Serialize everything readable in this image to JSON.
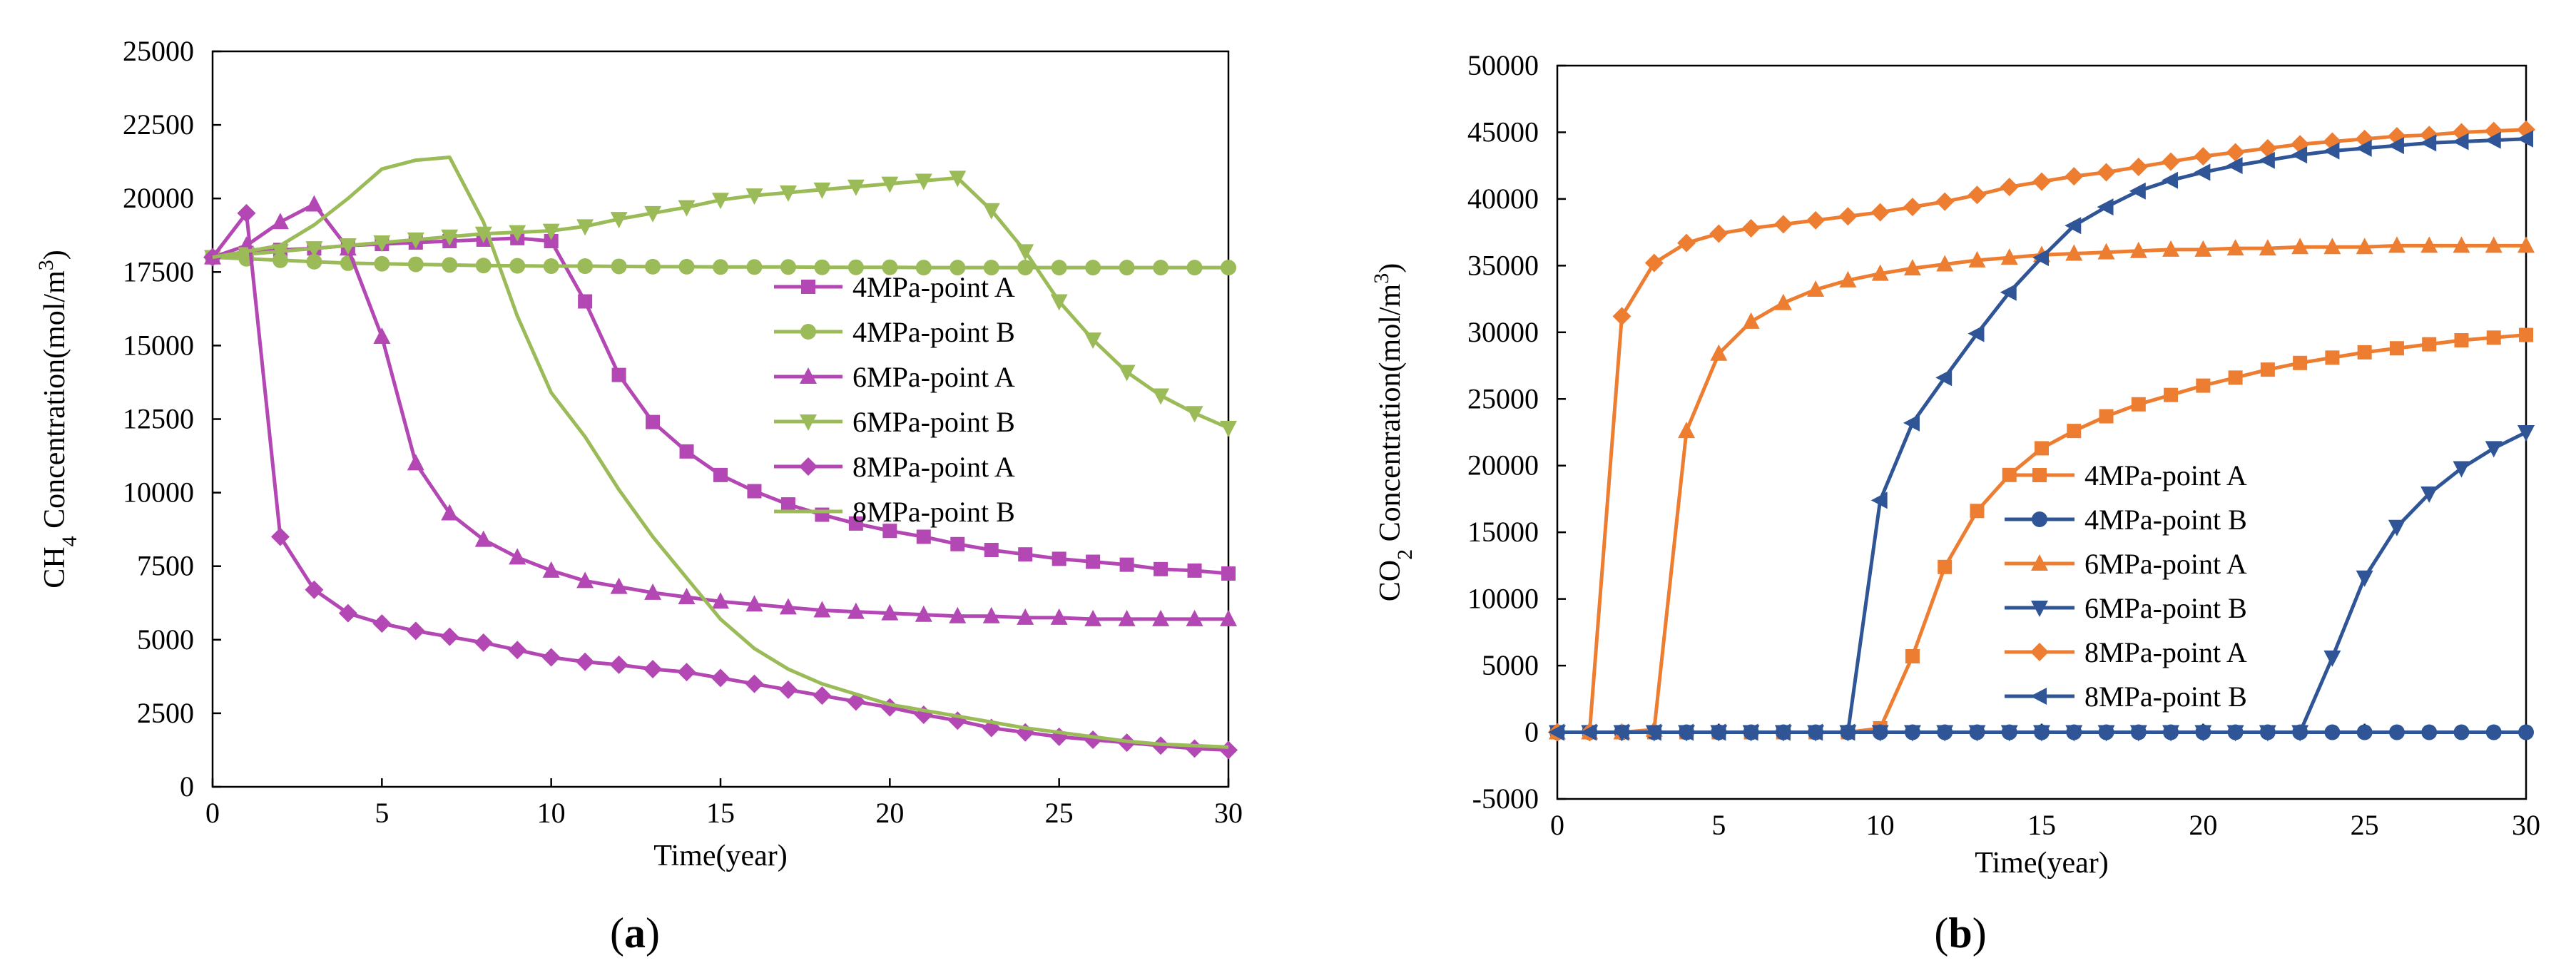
{
  "colors": {
    "magenta": "#b347b3",
    "olive": "#9bbb59",
    "orange": "#ed7d31",
    "navy": "#2f5597",
    "axis": "#000000"
  },
  "chart_data": [
    {
      "id": "a",
      "type": "line",
      "panel_label": "a",
      "title": "",
      "xlabel": "Time(year)",
      "ylabel": "CH4 Concentration(mol/m3)",
      "ylabel_parts": {
        "pre": "CH",
        "sub": "4",
        "mid": " Concentration(mol/m",
        "sup": "3",
        "post": ")"
      },
      "xlim": [
        0,
        30
      ],
      "ylim": [
        0,
        25000
      ],
      "xticks": [
        0,
        5,
        10,
        15,
        20,
        25,
        30
      ],
      "yticks": [
        0,
        2500,
        5000,
        7500,
        10000,
        12500,
        15000,
        17500,
        20000,
        22500,
        25000
      ],
      "grid": false,
      "legend_position": "center-right",
      "series": [
        {
          "name": "4MPa-point A",
          "color_key": "magenta",
          "marker": "square",
          "values": [
            18000,
            18150,
            18250,
            18300,
            18400,
            18450,
            18500,
            18550,
            18600,
            18650,
            18550,
            16500,
            14000,
            12400,
            11400,
            10600,
            10050,
            9600,
            9250,
            8950,
            8700,
            8500,
            8250,
            8050,
            7900,
            7750,
            7650,
            7550,
            7400,
            7350,
            7250
          ]
        },
        {
          "name": "4MPa-point B",
          "color_key": "olive",
          "marker": "circle",
          "values": [
            18000,
            17950,
            17900,
            17850,
            17800,
            17780,
            17760,
            17740,
            17720,
            17710,
            17700,
            17700,
            17690,
            17680,
            17680,
            17670,
            17670,
            17670,
            17660,
            17660,
            17660,
            17650,
            17650,
            17650,
            17650,
            17650,
            17650,
            17650,
            17650,
            17650,
            17650
          ]
        },
        {
          "name": "6MPa-point A",
          "color_key": "magenta",
          "marker": "triangle-up",
          "values": [
            18000,
            18400,
            19200,
            19800,
            18300,
            15300,
            11000,
            9300,
            8400,
            7800,
            7350,
            7000,
            6800,
            6600,
            6450,
            6300,
            6200,
            6100,
            6000,
            5950,
            5900,
            5850,
            5800,
            5800,
            5750,
            5750,
            5700,
            5700,
            5700,
            5700,
            5700
          ]
        },
        {
          "name": "6MPa-point B",
          "color_key": "olive",
          "marker": "triangle-down",
          "values": [
            18000,
            18100,
            18200,
            18300,
            18400,
            18500,
            18600,
            18700,
            18800,
            18850,
            18900,
            19050,
            19300,
            19500,
            19700,
            19950,
            20100,
            20200,
            20300,
            20400,
            20500,
            20600,
            20700,
            19600,
            18200,
            16500,
            15200,
            14100,
            13300,
            12700,
            12200
          ]
        },
        {
          "name": "8MPa-point A",
          "color_key": "magenta",
          "marker": "diamond",
          "values": [
            18000,
            19500,
            8500,
            6700,
            5900,
            5550,
            5300,
            5100,
            4900,
            4650,
            4400,
            4250,
            4150,
            4000,
            3900,
            3700,
            3500,
            3300,
            3100,
            2900,
            2700,
            2450,
            2250,
            2000,
            1850,
            1700,
            1600,
            1500,
            1400,
            1300,
            1250
          ]
        },
        {
          "name": "8MPa-point B",
          "color_key": "olive",
          "marker": "none",
          "values": [
            18000,
            18200,
            18400,
            19100,
            20000,
            21000,
            21300,
            21400,
            19200,
            16000,
            13400,
            11900,
            10100,
            8500,
            7100,
            5700,
            4700,
            4000,
            3500,
            3150,
            2800,
            2600,
            2400,
            2200,
            2000,
            1850,
            1700,
            1550,
            1450,
            1400,
            1350
          ]
        }
      ]
    },
    {
      "id": "b",
      "type": "line",
      "panel_label": "b",
      "title": "",
      "xlabel": "Time(year)",
      "ylabel": "CO2 Concentration(mol/m3)",
      "ylabel_parts": {
        "pre": "CO",
        "sub": "2",
        "mid": " Concentration(mol/m",
        "sup": "3",
        "post": ")"
      },
      "xlim": [
        0,
        30
      ],
      "ylim": [
        -5000,
        50000
      ],
      "xticks": [
        0,
        5,
        10,
        15,
        20,
        25,
        30
      ],
      "yticks": [
        -5000,
        0,
        5000,
        10000,
        15000,
        20000,
        25000,
        30000,
        35000,
        40000,
        45000,
        50000
      ],
      "grid": false,
      "legend_position": "bottom-right",
      "series": [
        {
          "name": "4MPa-point A",
          "color_key": "orange",
          "marker": "square",
          "values": [
            0,
            0,
            0,
            0,
            0,
            0,
            0,
            0,
            0,
            0,
            300,
            5700,
            12400,
            16600,
            19300,
            21300,
            22600,
            23700,
            24600,
            25300,
            26000,
            26600,
            27200,
            27700,
            28100,
            28500,
            28800,
            29100,
            29400,
            29600,
            29800
          ]
        },
        {
          "name": "4MPa-point B",
          "color_key": "navy",
          "marker": "circle",
          "values": [
            0,
            0,
            0,
            0,
            0,
            0,
            0,
            0,
            0,
            0,
            0,
            0,
            0,
            0,
            0,
            0,
            0,
            0,
            0,
            0,
            0,
            0,
            0,
            0,
            0,
            0,
            0,
            0,
            0,
            0,
            0
          ]
        },
        {
          "name": "6MPa-point A",
          "color_key": "orange",
          "marker": "triangle-up",
          "values": [
            0,
            0,
            0,
            200,
            22600,
            28400,
            30800,
            32200,
            33200,
            33900,
            34400,
            34800,
            35100,
            35400,
            35600,
            35800,
            35900,
            36000,
            36100,
            36200,
            36200,
            36300,
            36300,
            36400,
            36400,
            36400,
            36500,
            36500,
            36500,
            36500,
            36500
          ]
        },
        {
          "name": "6MPa-point B",
          "color_key": "navy",
          "marker": "triangle-down",
          "values": [
            0,
            0,
            0,
            0,
            0,
            0,
            0,
            0,
            0,
            0,
            0,
            0,
            0,
            0,
            0,
            0,
            0,
            0,
            0,
            0,
            0,
            0,
            0,
            0,
            5600,
            11600,
            15400,
            17900,
            19800,
            21300,
            22500
          ]
        },
        {
          "name": "8MPa-point A",
          "color_key": "orange",
          "marker": "diamond",
          "values": [
            0,
            0,
            31200,
            35200,
            36700,
            37400,
            37800,
            38100,
            38400,
            38700,
            39000,
            39400,
            39800,
            40300,
            40900,
            41300,
            41700,
            42000,
            42400,
            42800,
            43200,
            43500,
            43800,
            44100,
            44300,
            44500,
            44700,
            44800,
            45000,
            45100,
            45200
          ]
        },
        {
          "name": "8MPa-point B",
          "color_key": "navy",
          "marker": "triangle-left",
          "values": [
            0,
            0,
            0,
            0,
            0,
            0,
            0,
            0,
            0,
            0,
            17400,
            23200,
            26600,
            29900,
            33000,
            35600,
            38000,
            39400,
            40600,
            41400,
            42000,
            42500,
            42900,
            43300,
            43600,
            43800,
            44000,
            44200,
            44300,
            44400,
            44500
          ]
        }
      ]
    }
  ]
}
